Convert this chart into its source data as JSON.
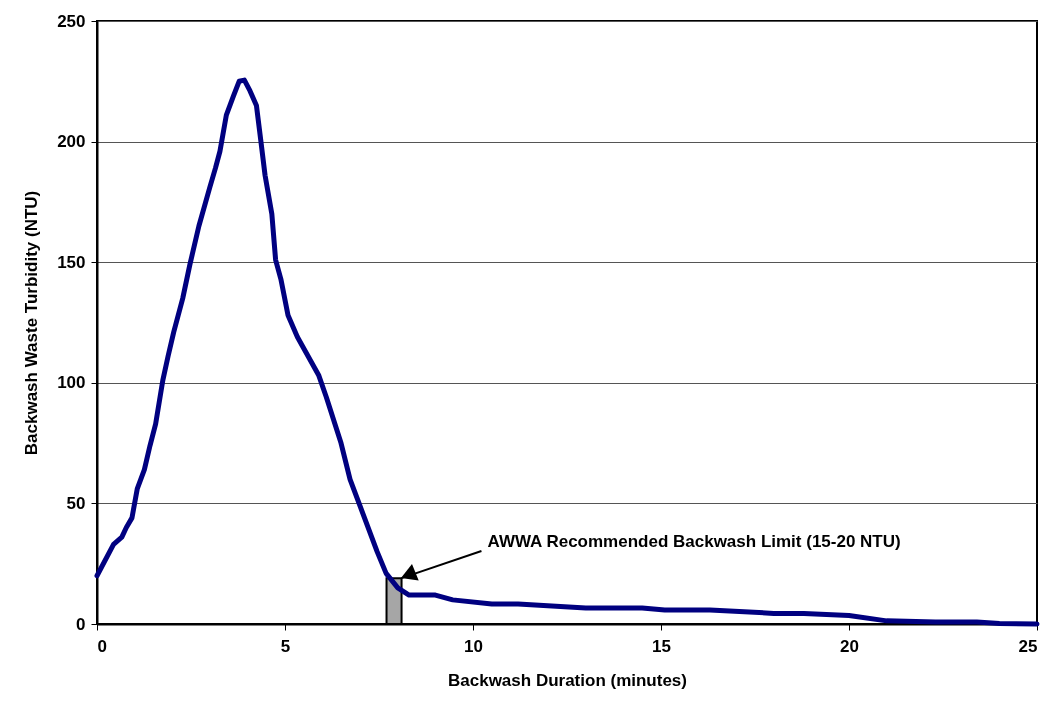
{
  "chart_data": {
    "type": "line",
    "xlabel": "Backwash Duration (minutes)",
    "ylabel": "Backwash Waste Turbidity (NTU)",
    "x": [
      0,
      0.44,
      0.66,
      0.78,
      0.93,
      1.07,
      1.26,
      1.41,
      1.56,
      1.75,
      1.89,
      2.04,
      2.28,
      2.47,
      2.71,
      3.0,
      3.15,
      3.27,
      3.44,
      3.63,
      3.78,
      3.92,
      4.07,
      4.24,
      4.36,
      4.47,
      4.65,
      4.75,
      4.89,
      5.08,
      5.33,
      5.9,
      6.1,
      6.49,
      6.73,
      6.97,
      7.45,
      7.69,
      8.0,
      8.3,
      9.0,
      9.46,
      10.5,
      11.2,
      13.0,
      14.5,
      15.1,
      16.3,
      18.0,
      18.8,
      20.0,
      21.0,
      22.3,
      23.4,
      24.0,
      25
    ],
    "series": [
      {
        "color": "#000080",
        "values": [
          20,
          33,
          36,
          40,
          44,
          56,
          64,
          74,
          83,
          101,
          111,
          121,
          135,
          149,
          165,
          181,
          189,
          196,
          211,
          219,
          225,
          225.5,
          221,
          215,
          200,
          186,
          170,
          151,
          143,
          128,
          119,
          103,
          94,
          75,
          60,
          50,
          30,
          21,
          15,
          12,
          12,
          10,
          8.3,
          8.3,
          6.6,
          6.6,
          5.8,
          5.8,
          4.4,
          4.4,
          3.5,
          1.3,
          0.8,
          0.8,
          0.2,
          0
        ]
      }
    ],
    "xlim": [
      0,
      25
    ],
    "xticks": [
      0,
      5,
      10,
      15,
      20,
      25
    ],
    "ylim": [
      0,
      250
    ],
    "yticks": [
      0,
      50,
      100,
      150,
      200,
      250
    ],
    "grid": "y",
    "marker": "none",
    "line_style": "solid",
    "bands": [
      {
        "axis": "x",
        "from": 7.7,
        "to": 8.1,
        "color": "#000000"
      }
    ],
    "annotations": [
      {
        "text": "AWWA Recommended Backwash Limit (15-20 NTU)",
        "x": 8.1,
        "y": 19
      }
    ]
  }
}
